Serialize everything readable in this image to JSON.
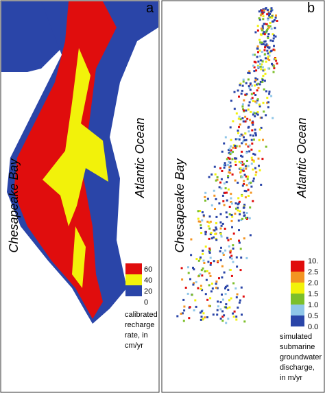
{
  "panels": [
    {
      "label": "a",
      "bay": "Chesapeake Bay",
      "ocean": "Atlantic Ocean",
      "legend_ticks": [
        "60",
        "40",
        "20",
        "0"
      ],
      "legend_caption": [
        "calibrated",
        "recharge",
        "rate, in",
        "cm/yr"
      ]
    },
    {
      "label": "b",
      "bay": "Chesapeake Bay",
      "ocean": "Atlantic Ocean",
      "legend_ticks": [
        "10.",
        "2.5",
        "2.0",
        "1.5",
        "1.0",
        "0.5",
        "0.0"
      ],
      "legend_caption": [
        "simulated",
        "submarine",
        "groundwater",
        "discharge,",
        "in m/yr"
      ]
    }
  ]
}
